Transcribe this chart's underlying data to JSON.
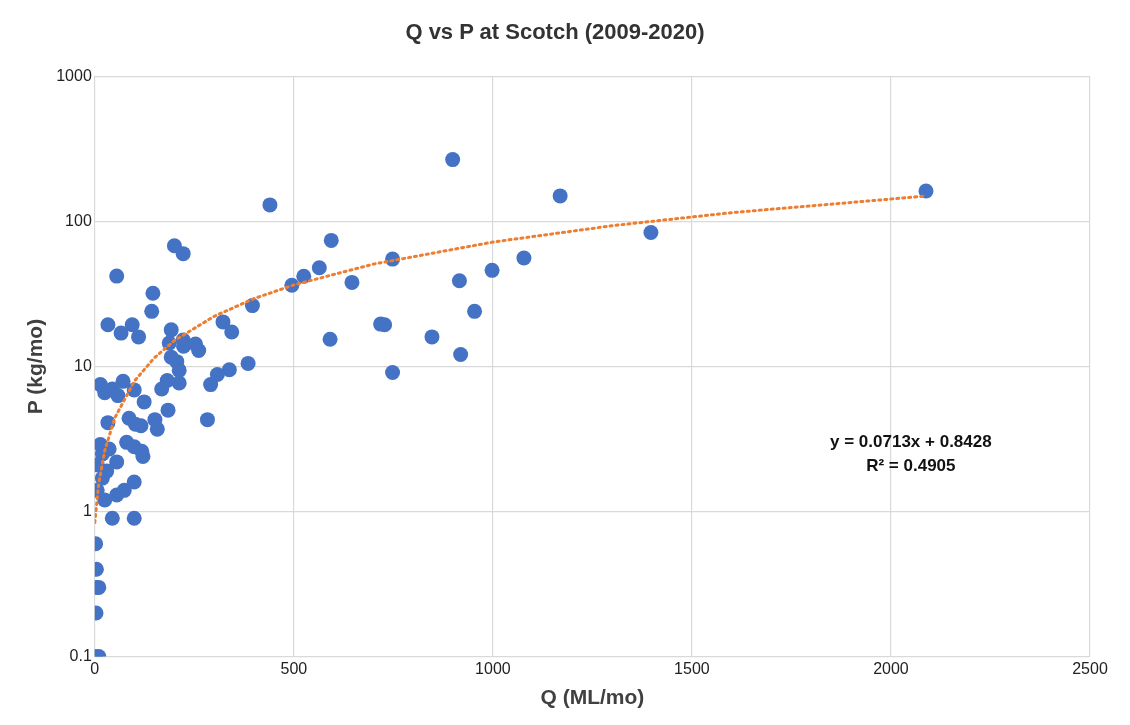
{
  "chart_data": {
    "type": "scatter",
    "title": "Q vs P at Scotch (2009-2020)",
    "xlabel": "Q (ML/mo)",
    "ylabel": "P (kg/mo)",
    "xlim": [
      0,
      2500
    ],
    "xticks": [
      0,
      500,
      1000,
      1500,
      2000,
      2500
    ],
    "ylim": [
      0.1,
      1000
    ],
    "yticks": [
      0.1,
      1,
      10,
      100,
      1000
    ],
    "log": "y",
    "grid": true,
    "legend": false,
    "marker": "circle",
    "series": [
      {
        "color": "#4472c4",
        "x": [
          55,
          146,
          143,
          33,
          66,
          94,
          110,
          192,
          187,
          222,
          223,
          253,
          261,
          322,
          344,
          396,
          495,
          525,
          564,
          591,
          192,
          206,
          212,
          385,
          338,
          308,
          291,
          212,
          182,
          168,
          99,
          124,
          71,
          14,
          25,
          44,
          58,
          184,
          86,
          102,
          116,
          151,
          157,
          283,
          33,
          14,
          36,
          80,
          99,
          118,
          121,
          55,
          6,
          19,
          19,
          30,
          99,
          6,
          25,
          55,
          74,
          44,
          99,
          899,
          1169,
          1397,
          594,
          748,
          646,
          916,
          998,
          1078,
          954,
          718,
          728,
          847,
          919,
          748,
          440,
          200,
          222,
          2088,
          2,
          4,
          4,
          10,
          3,
          2,
          10
        ],
        "values": [
          42,
          32,
          24,
          19.4,
          17,
          19.4,
          16,
          17.9,
          14.5,
          15.2,
          13.8,
          14.3,
          12.9,
          20.3,
          17.3,
          26.3,
          36.3,
          41.9,
          47.9,
          15.4,
          11.6,
          10.8,
          9.4,
          10.5,
          9.5,
          8.8,
          7.5,
          7.7,
          8,
          7,
          6.9,
          5.7,
          7.9,
          7.5,
          6.6,
          7,
          6.3,
          5,
          4.4,
          4,
          3.9,
          4.3,
          3.7,
          4.3,
          4.1,
          2.9,
          2.7,
          3,
          2.8,
          2.6,
          2.4,
          2.2,
          2.1,
          2.5,
          1.7,
          1.9,
          1.6,
          1.4,
          1.2,
          1.3,
          1.4,
          0.9,
          0.9,
          267,
          150,
          84,
          74,
          55,
          38,
          39,
          46,
          56,
          24,
          19.6,
          19.4,
          16,
          12.1,
          9.1,
          130,
          68,
          60,
          162,
          0.6,
          0.4,
          0.3,
          0.3,
          0.2,
          0.1,
          0.1
        ]
      },
      {
        "type": "line",
        "color": "#ed7d31",
        "marker": "none",
        "line_style": "dotted",
        "x": [
          0,
          10,
          25,
          50,
          100,
          150,
          200,
          300,
          400,
          500,
          700,
          1000,
          1300,
          1600,
          2088
        ],
        "values": [
          0.84,
          1.56,
          2.63,
          4.41,
          7.97,
          11.5,
          15.1,
          22.2,
          29.4,
          36.5,
          50.8,
          72.1,
          93.5,
          115,
          149.7
        ]
      }
    ],
    "annotations": [
      "y = 0.0713x + 0.8428",
      "R² = 0.4905"
    ]
  }
}
